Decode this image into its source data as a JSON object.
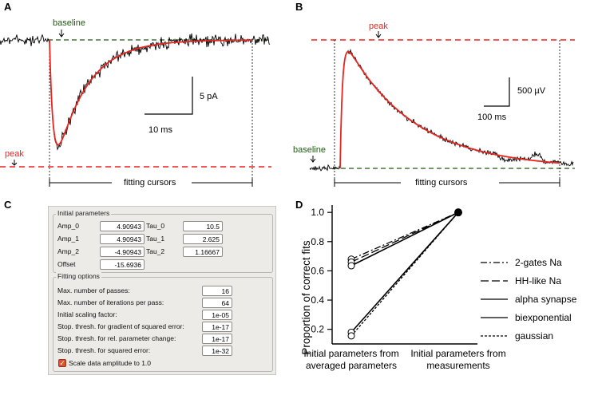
{
  "panels": {
    "a": {
      "label": "A",
      "baseline": "baseline",
      "peak": "peak",
      "scale_y": "5 pA",
      "scale_x": "10 ms",
      "cursors": "fitting cursors"
    },
    "b": {
      "label": "B",
      "baseline": "baseline",
      "peak": "peak",
      "scale_y": "500 µV",
      "scale_x": "100 ms",
      "cursors": "fitting cursors"
    },
    "c": {
      "label": "C"
    },
    "d": {
      "label": "D"
    }
  },
  "dialog": {
    "initial_title": "Initial parameters",
    "params": [
      {
        "name": "Amp_0",
        "value": "4.90943",
        "tau_name": "Tau_0",
        "tau_value": "10.5"
      },
      {
        "name": "Amp_1",
        "value": "4.90943",
        "tau_name": "Tau_1",
        "tau_value": "2.625"
      },
      {
        "name": "Amp_2",
        "value": "-4.90943",
        "tau_name": "Tau_2",
        "tau_value": "1.16667"
      }
    ],
    "offset_name": "Offset",
    "offset_value": "-15.6936",
    "fitting_title": "Fitting options",
    "options": [
      {
        "label": "Max. number of passes:",
        "value": "16"
      },
      {
        "label": "Max. number of iterations per pass:",
        "value": "64"
      },
      {
        "label": "Initial scaling factor:",
        "value": "1e-05"
      },
      {
        "label": "Stop. thresh. for gradient of squared error:",
        "value": "1e-17"
      },
      {
        "label": "Stop. thresh. for rel. parameter change:",
        "value": "1e-17"
      },
      {
        "label": "Stop. thresh. for squared error:",
        "value": "1e-32"
      }
    ],
    "checkbox_label": "Scale data amplitude to 1.0"
  },
  "chart_data": {
    "type": "line",
    "ylabel": "Proportion of correct  fits",
    "categories": [
      "Initial parameters from averaged parameters",
      "Initial parameters from measurements"
    ],
    "cat_lines": [
      [
        "Initial parameters from",
        "averaged parameters"
      ],
      [
        "Initial parameters from",
        "measurements"
      ]
    ],
    "ylim": [
      0.1,
      1.05
    ],
    "yticks": [
      "0.2",
      "0.4",
      "0.6",
      "0.8",
      "1.0"
    ],
    "series": [
      {
        "name": "2-gates Na",
        "values": [
          0.68,
          1.0
        ],
        "dash": "8,3,2,3"
      },
      {
        "name": "HH-like Na",
        "values": [
          0.66,
          1.0
        ],
        "dash": "10,4"
      },
      {
        "name": "alpha synapse",
        "values": [
          0.635,
          1.0
        ],
        "dash": ""
      },
      {
        "name": "biexponential",
        "values": [
          0.18,
          1.0
        ],
        "dash": ""
      },
      {
        "name": "gaussian",
        "values": [
          0.155,
          1.0
        ],
        "dash": "3,2"
      }
    ]
  },
  "colors": {
    "peak": "#e8251e",
    "baseline": "#1f5a12",
    "fit": "#e8251e",
    "trace": "#000000"
  }
}
